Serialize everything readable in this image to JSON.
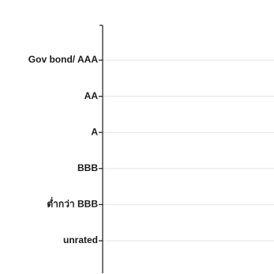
{
  "chart_data": {
    "type": "bar",
    "orientation": "horizontal",
    "categories": [
      "Gov bond/ AAA",
      "AA",
      "A",
      "BBB",
      "ต่ำกว่า BBB",
      "unrated"
    ],
    "series": [
      {
        "values": [
          null,
          null,
          null,
          null,
          null,
          null
        ]
      }
    ],
    "grid": true,
    "colors": {
      "axis": "#1a1a1a",
      "grid": "#e6e6e6",
      "label": "#1a1a1a"
    }
  }
}
